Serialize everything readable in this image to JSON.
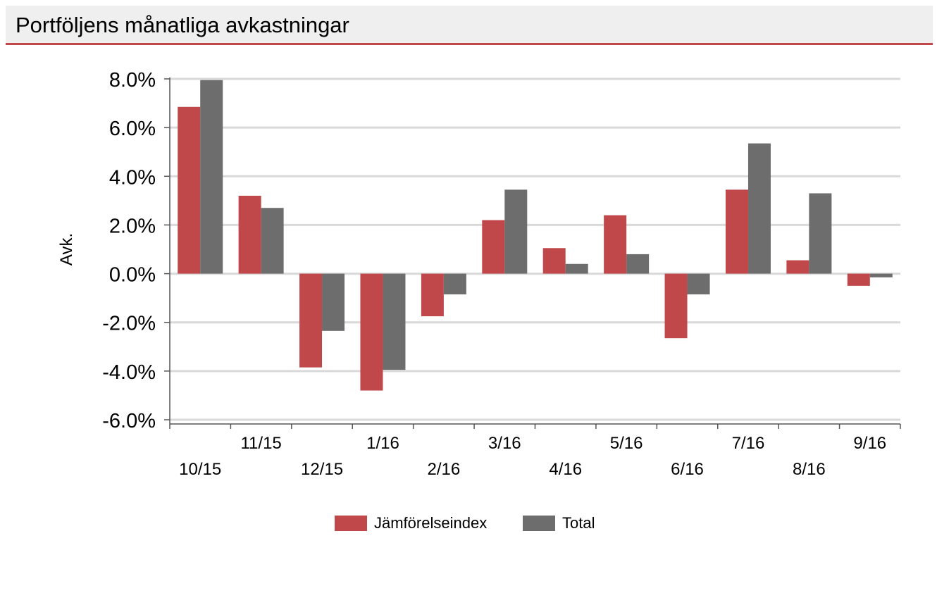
{
  "header": {
    "title": "Portföljens månatliga avkastningar"
  },
  "chart_data": {
    "type": "bar",
    "title": "Portföljens månatliga avkastningar",
    "xlabel": "",
    "ylabel": "Avk.",
    "ylim": [
      -6,
      8
    ],
    "yticks": [
      8,
      6,
      4,
      2,
      0,
      -2,
      -4,
      -6
    ],
    "ytick_labels": [
      "8.0%",
      "6.0%",
      "4.0%",
      "2.0%",
      "0.0%",
      "-2.0%",
      "-4.0%",
      "-6.0%"
    ],
    "grid": true,
    "legend_position": "bottom-center",
    "categories": [
      "10/15",
      "11/15",
      "12/15",
      "1/16",
      "2/16",
      "3/16",
      "4/16",
      "5/16",
      "6/16",
      "7/16",
      "8/16",
      "9/16"
    ],
    "series": [
      {
        "name": "Jämförelseindex",
        "color": "#c0484a",
        "values": [
          6.85,
          3.2,
          -3.85,
          -4.8,
          -1.75,
          2.2,
          1.05,
          2.4,
          -2.65,
          3.45,
          0.55,
          -0.5
        ]
      },
      {
        "name": "Total",
        "color": "#6d6d6d",
        "values": [
          7.95,
          2.7,
          -2.35,
          -3.95,
          -0.85,
          3.45,
          0.4,
          0.8,
          -0.85,
          5.35,
          3.3,
          -0.15
        ]
      }
    ]
  }
}
